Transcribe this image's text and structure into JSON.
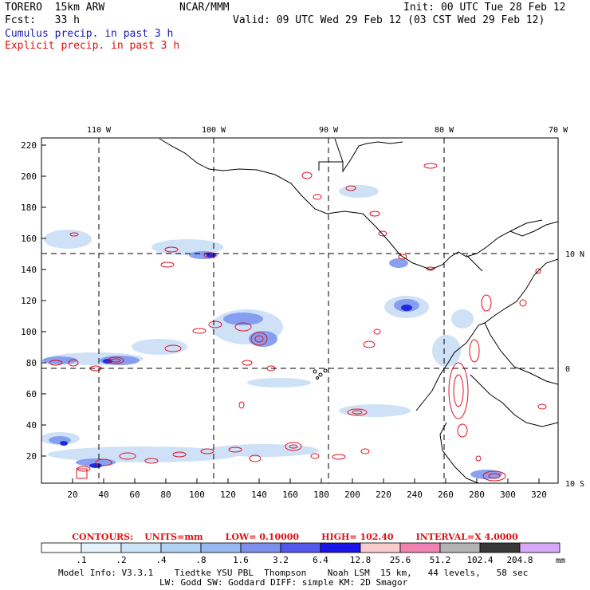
{
  "header": {
    "model": "TORERO  15km ARW",
    "org": "NCAR/MMM",
    "init": "Init: 00 UTC Tue 28 Feb 12",
    "fcst": "Fcst:   33 h",
    "valid": "Valid: 09 UTC Wed 29 Feb 12 (03 CST Wed 29 Feb 12)",
    "field1": "Cumulus precip. in past 3 h",
    "field2": "Explicit precip. in past 3 h"
  },
  "map": {
    "lon_labels_top": [
      "110 W",
      "100 W",
      "90 W",
      "80 W",
      "70 W"
    ],
    "lat_labels_right": [
      "10 N",
      "0",
      "10 S"
    ],
    "y_ticks": [
      "220",
      "200",
      "180",
      "160",
      "140",
      "120",
      "100",
      "80",
      "60",
      "40",
      "20"
    ],
    "x_ticks": [
      "20",
      "40",
      "60",
      "80",
      "100",
      "120",
      "140",
      "160",
      "180",
      "200",
      "220",
      "240",
      "260",
      "280",
      "300",
      "320"
    ],
    "colors": {
      "coast": "#000000",
      "grid": "#000000",
      "cumulus_light": "#c6dcf6",
      "cumulus_mid": "#7e97f0",
      "cumulus_dark": "#1c2ae0",
      "explicit": "#e01020"
    }
  },
  "contours": {
    "label": "CONTOURS:",
    "units": "UNITS=mm",
    "low": "LOW= 0.10000",
    "high": "HIGH=  102.40",
    "interval": "INTERVAL=X  4.0000"
  },
  "colorbar": {
    "labels": [
      ".1",
      ".2",
      ".4",
      ".8",
      "1.6",
      "3.2",
      "6.4",
      "12.8",
      "25.6",
      "51.2",
      "102.4",
      "204.8"
    ],
    "unit": "mm",
    "colors": [
      "#ffffff",
      "#e6f2fc",
      "#cce4f8",
      "#b0d2f4",
      "#98b8f2",
      "#7c90ec",
      "#5458ea",
      "#1a14e6",
      "#f8cccc",
      "#f082b4",
      "#b4b4b4",
      "#383838",
      "#d8a8f8"
    ]
  },
  "footer": {
    "line1": "Model Info: V3.3.1    Tiedtke YSU PBL  Thompson    Noah LSM  15 km,   44 levels,   58 sec",
    "line2": "LW: Godd SW: Goddard DIFF: simple KM: 2D Smagor"
  }
}
